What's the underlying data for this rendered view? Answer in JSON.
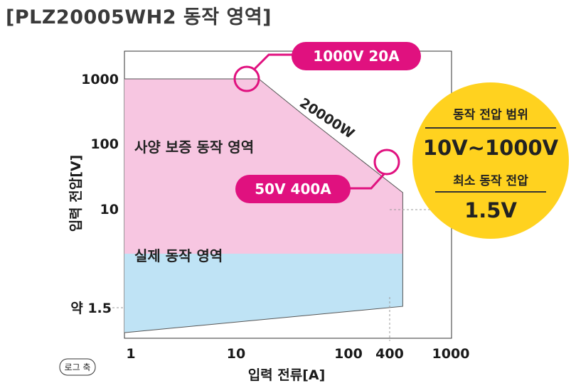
{
  "title": "[PLZ20005WH2 동작 영역]",
  "chart_data": {
    "type": "area",
    "x_scale": "log",
    "y_scale": "log",
    "xlabel": "입력 전류[A]",
    "ylabel": "입력 전압[V]",
    "xlim": [
      1,
      1000
    ],
    "ylim": [
      1,
      1000
    ],
    "x_ticks": [
      "1",
      "10",
      "100",
      "400",
      "1000"
    ],
    "y_ticks": [
      "1000",
      "100",
      "10",
      "약 1.5"
    ],
    "scale_note": "로그 축",
    "series": [
      {
        "name": "사양 보증 동작 영역",
        "color": "#f7c6e1",
        "points": [
          [
            1,
            1000
          ],
          [
            10,
            1000
          ],
          [
            20,
            1000
          ],
          [
            50,
            400
          ],
          [
            400,
            50
          ],
          [
            400,
            10
          ],
          [
            1,
            10
          ]
        ]
      },
      {
        "name": "실제 동작 영역",
        "color": "#bfe3f5",
        "points": [
          [
            1,
            10
          ],
          [
            400,
            10
          ],
          [
            400,
            2.5
          ],
          [
            1,
            1.25
          ]
        ]
      }
    ],
    "power_line_label": "20000W",
    "callouts": {
      "top": "1000V 20A",
      "bottom": "50V 400A"
    },
    "badge": {
      "color": "#ffd21f",
      "range_title": "동작 전압 범위",
      "range_value": "10V~1000V",
      "min_title": "최소 동작 전압",
      "min_value": "1.5V"
    },
    "accent_color": "#e0117f"
  }
}
